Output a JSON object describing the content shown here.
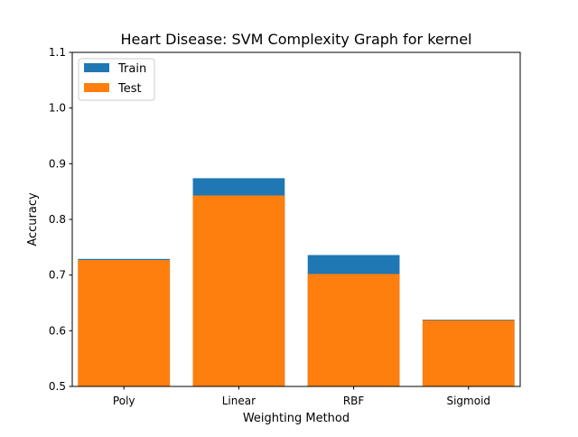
{
  "chart_data": {
    "type": "bar",
    "title": "Heart Disease: SVM Complexity Graph for kernel",
    "xlabel": "Weighting Method",
    "ylabel": "Accuracy",
    "categories": [
      "Poly",
      "Linear",
      "RBF",
      "Sigmoid"
    ],
    "series": [
      {
        "name": "Train",
        "values": [
          0.729,
          0.874,
          0.736,
          0.62
        ],
        "color": "#1f77b4"
      },
      {
        "name": "Test",
        "values": [
          0.727,
          0.843,
          0.702,
          0.619
        ],
        "color": "#ff7f0e"
      }
    ],
    "ylim": [
      0.5,
      1.1
    ],
    "yticks": [
      "0.5",
      "0.6",
      "0.7",
      "0.8",
      "0.9",
      "1.0",
      "1.1"
    ],
    "overlay": true,
    "grid": false,
    "legend_position": "top-left"
  }
}
